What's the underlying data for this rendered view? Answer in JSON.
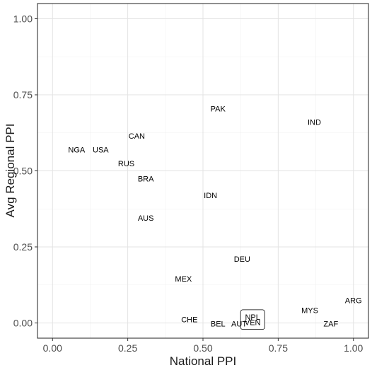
{
  "chart_data": {
    "type": "scatter",
    "xlabel": "National PPI",
    "ylabel": "Avg Regional PPI",
    "xlim": [
      -0.05,
      1.05
    ],
    "ylim": [
      -0.05,
      1.05
    ],
    "x_ticks": [
      0,
      0.25,
      0.5,
      0.75,
      1
    ],
    "x_tick_labels": [
      "0.00",
      "0.25",
      "0.50",
      "0.75",
      "1.00"
    ],
    "y_ticks": [
      0,
      0.25,
      0.5,
      0.75,
      1
    ],
    "y_tick_labels": [
      "0.00",
      "0.25",
      "0.50",
      "0.75",
      "1.00"
    ],
    "grid": true,
    "points": [
      {
        "label": "PAK",
        "x": 0.55,
        "y": 0.705
      },
      {
        "label": "IND",
        "x": 0.87,
        "y": 0.66
      },
      {
        "label": "CAN",
        "x": 0.28,
        "y": 0.615
      },
      {
        "label": "NGA",
        "x": 0.08,
        "y": 0.57
      },
      {
        "label": "USA",
        "x": 0.16,
        "y": 0.57
      },
      {
        "label": "RUS",
        "x": 0.245,
        "y": 0.525
      },
      {
        "label": "BRA",
        "x": 0.31,
        "y": 0.475
      },
      {
        "label": "IDN",
        "x": 0.525,
        "y": 0.42
      },
      {
        "label": "AUS",
        "x": 0.31,
        "y": 0.345
      },
      {
        "label": "DEU",
        "x": 0.63,
        "y": 0.21
      },
      {
        "label": "MEX",
        "x": 0.435,
        "y": 0.145
      },
      {
        "label": "ARG",
        "x": 1.0,
        "y": 0.075
      },
      {
        "label": "MYS",
        "x": 0.855,
        "y": 0.042
      },
      {
        "label": "CHE",
        "x": 0.455,
        "y": 0.012
      },
      {
        "label": "BEL",
        "x": 0.55,
        "y": -0.002
      },
      {
        "label": "AUT",
        "x": 0.62,
        "y": -0.002
      },
      {
        "label": "ZAF",
        "x": 0.925,
        "y": -0.002
      },
      {
        "label": "NPL",
        "x": 0.665,
        "y": 0.02,
        "boxed": true
      },
      {
        "label": "VEN",
        "x": 0.665,
        "y": 0.002,
        "boxed": true
      }
    ]
  }
}
